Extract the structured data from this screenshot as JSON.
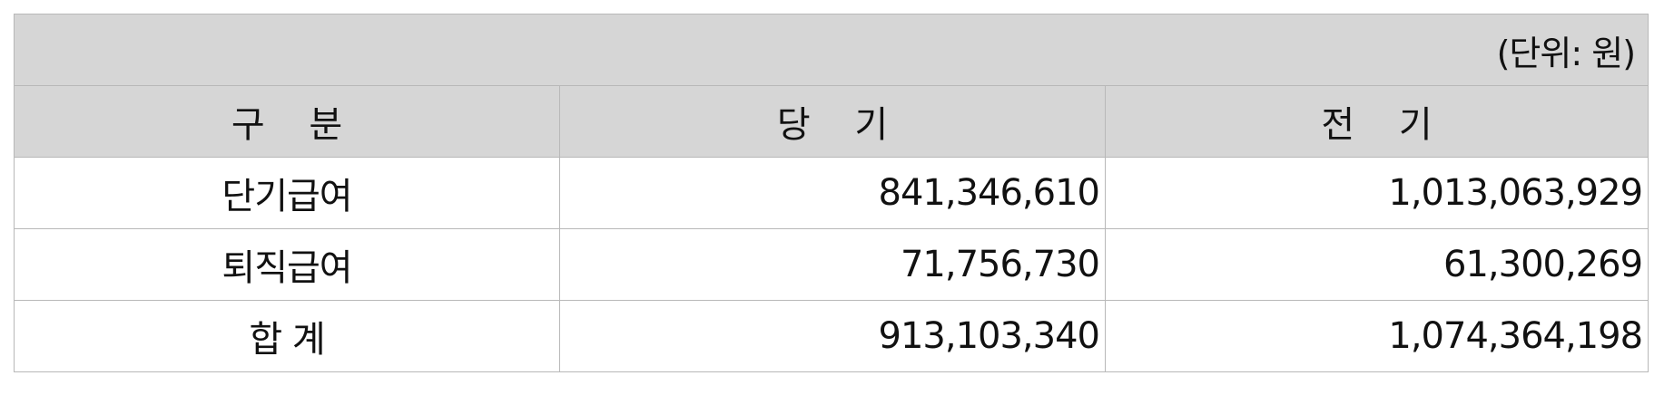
{
  "unit_note": "(단위: 원)",
  "headers": [
    "구 분",
    "당 기",
    "전 기"
  ],
  "rows": [
    {
      "label": "단기급여",
      "current": "841,346,610",
      "prior": "1,013,063,929"
    },
    {
      "label": "퇴직급여",
      "current": "71,756,730",
      "prior": "61,300,269"
    },
    {
      "label": "합 계",
      "current": "913,103,340",
      "prior": "1,074,364,198"
    }
  ]
}
